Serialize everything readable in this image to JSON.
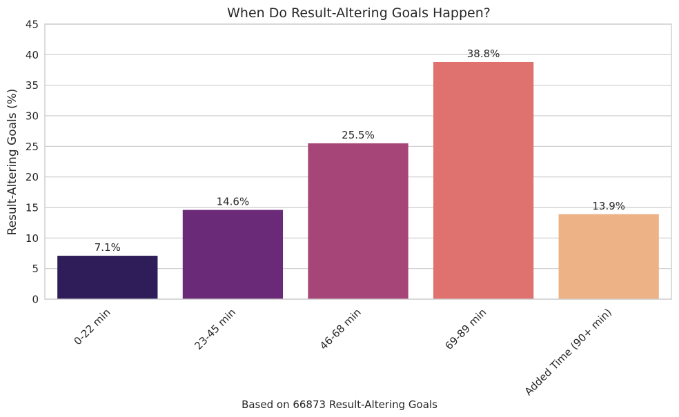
{
  "chart_data": {
    "type": "bar",
    "title": "When Do Result-Altering Goals Happen?",
    "xlabel": "Based on 66873 Result-Altering Goals",
    "ylabel": "Result-Altering Goals (%)",
    "categories": [
      "0-22 min",
      "23-45 min",
      "46-68 min",
      "69-89 min",
      "Added Time (90+ min)"
    ],
    "values": [
      7.1,
      14.6,
      25.5,
      38.8,
      13.9
    ],
    "data_labels": [
      "7.1%",
      "14.6%",
      "25.5%",
      "38.8%",
      "13.9%"
    ],
    "colors": [
      "#2e1d58",
      "#6a2a77",
      "#a64678",
      "#df716e",
      "#eeb287"
    ],
    "ylim": [
      0,
      45
    ],
    "yticks": [
      0,
      5,
      10,
      15,
      20,
      25,
      30,
      35,
      40,
      45
    ],
    "grid": true,
    "x_tick_rotation_deg": 45
  }
}
